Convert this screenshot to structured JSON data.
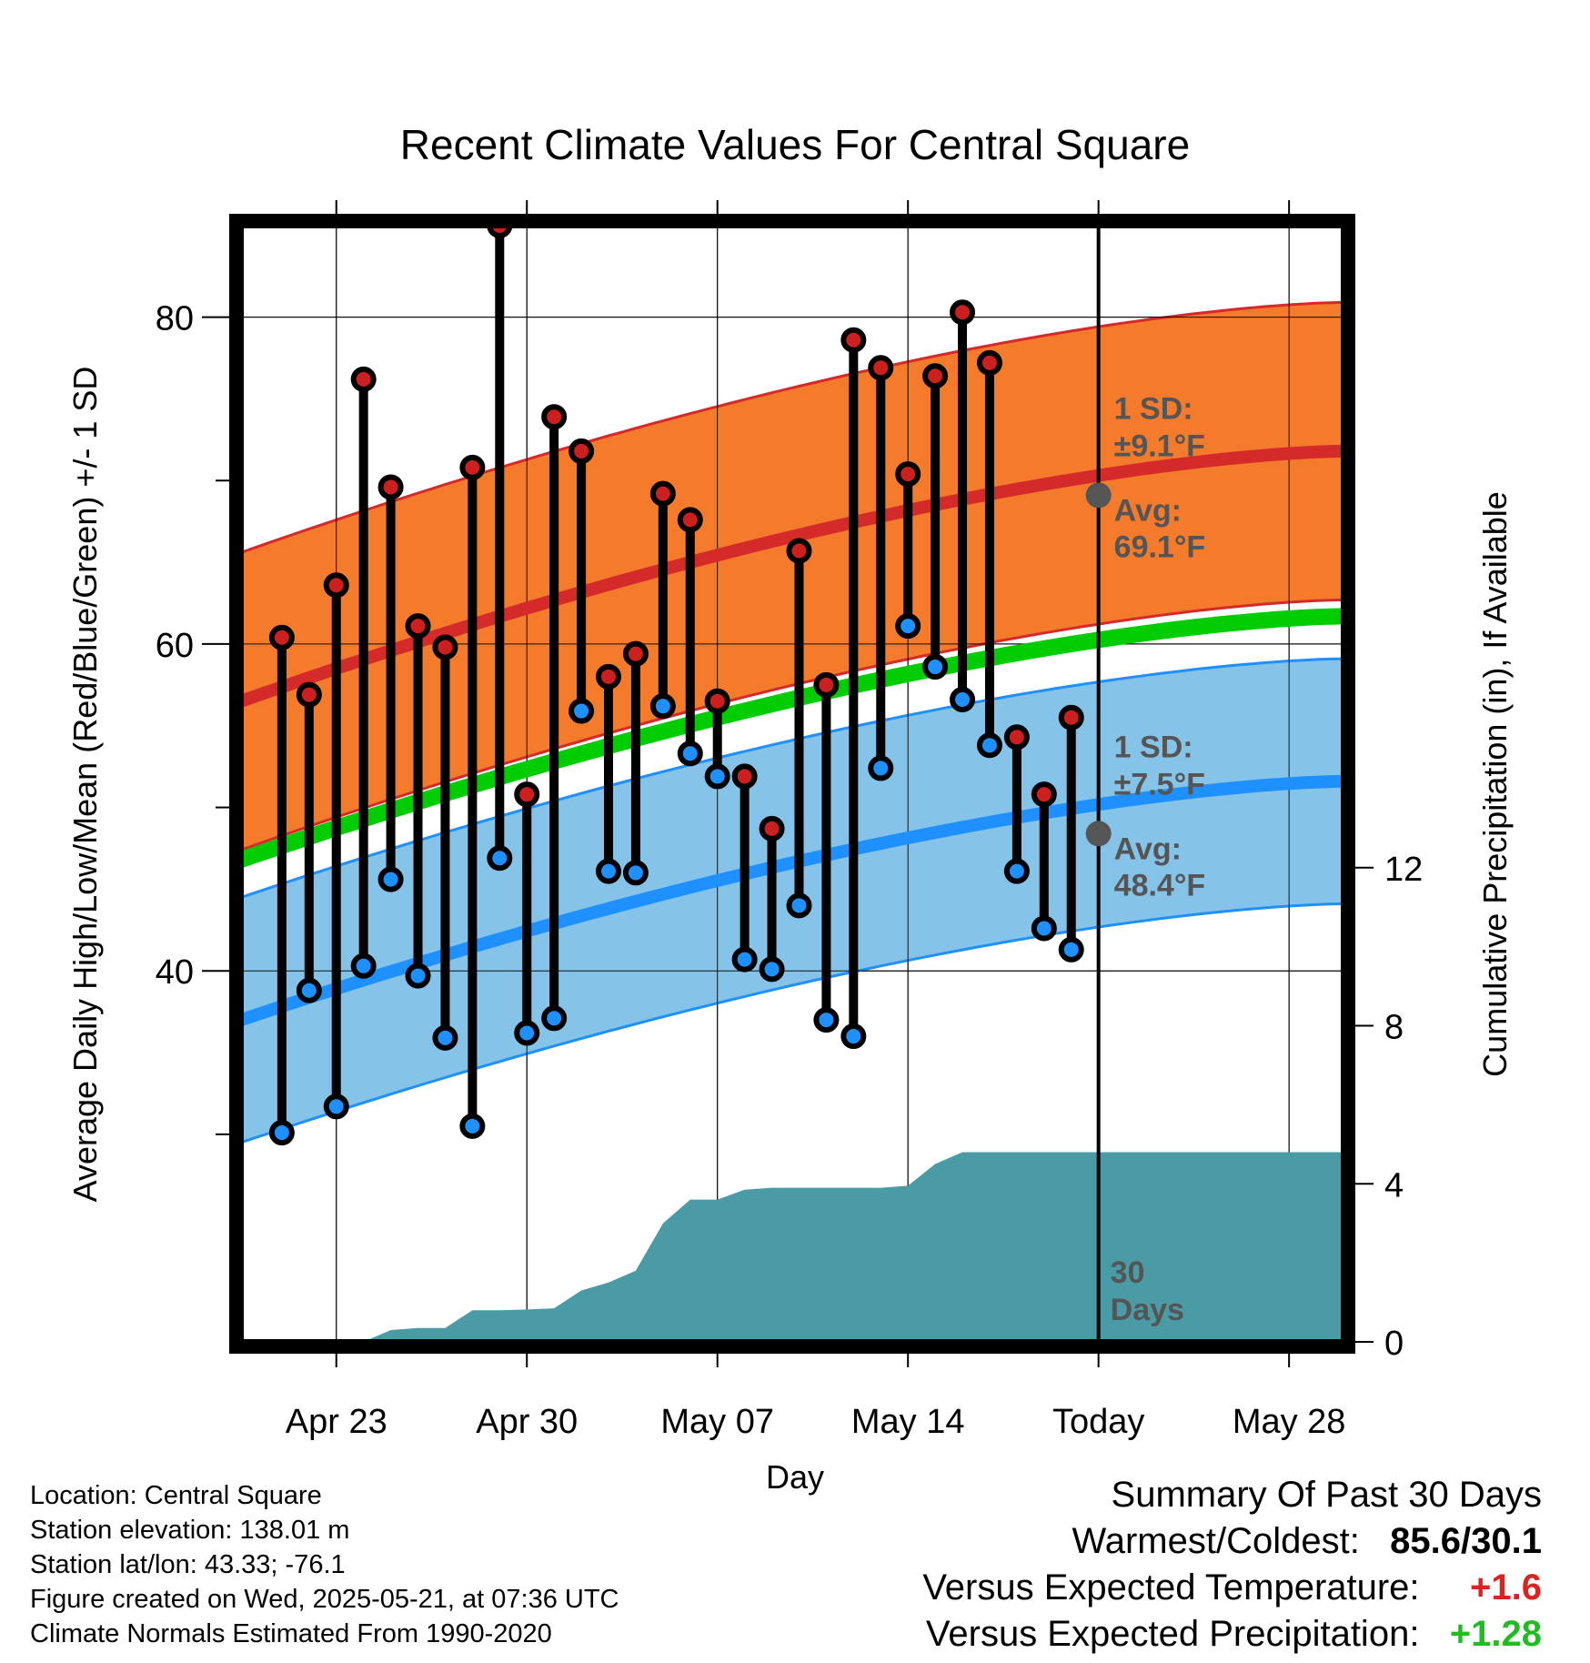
{
  "chart_data": {
    "type": "line",
    "title": "Recent Climate Values For Central Square",
    "xlabel": "Day",
    "ylabel_left": "Average Daily High/Low/Mean (Red/Blue/Green) +/- 1 SD",
    "ylabel_right": "Cumulative Precipitation (in), If Available",
    "x_tick_labels": [
      "Apr 23",
      "Apr 30",
      "May 07",
      "May 14",
      "Today",
      "May 28"
    ],
    "x_tick_days": [
      3,
      10,
      17,
      24,
      31,
      38
    ],
    "x_range_days": [
      -0.5,
      40
    ],
    "y_left_ticks": [
      40,
      60,
      80
    ],
    "y_left_range": [
      17.3,
      85.6
    ],
    "y_right_ticks": [
      0,
      4,
      8,
      12
    ],
    "y_right_range": [
      0,
      28.25
    ],
    "grid": true,
    "today_day": 31,
    "daily_highs": [
      60.4,
      56.9,
      63.6,
      76.2,
      69.6,
      61.1,
      59.8,
      70.8,
      85.6,
      50.8,
      73.9,
      71.8,
      58.0,
      59.4,
      69.2,
      67.6,
      56.5,
      51.9,
      48.7,
      65.7,
      57.5,
      78.6,
      76.9,
      70.4,
      76.4,
      80.3,
      77.2,
      54.3,
      50.8,
      55.5
    ],
    "daily_lows": [
      30.1,
      38.8,
      31.7,
      40.3,
      45.6,
      39.7,
      35.9,
      30.5,
      46.9,
      36.2,
      37.1,
      55.9,
      46.1,
      46.0,
      56.2,
      53.3,
      51.9,
      40.7,
      40.1,
      44.0,
      37.0,
      36.0,
      52.4,
      61.1,
      58.6,
      56.6,
      53.8,
      46.1,
      42.6,
      41.3
    ],
    "normal_high": {
      "name": "Avg",
      "value_today": 69.1,
      "sd": 9.1,
      "start": 56.5,
      "end": 71.8
    },
    "normal_low": {
      "name": "Avg",
      "value_today": 48.4,
      "sd": 7.5,
      "start": 37.0,
      "end": 51.6
    },
    "normal_mean": {
      "start": 46.8,
      "end": 61.7
    },
    "cumulative_precip_days": [
      0,
      3,
      4,
      5,
      6,
      7,
      8,
      9,
      10,
      11,
      12,
      13,
      14,
      15,
      16,
      17,
      18,
      19,
      20,
      21,
      22,
      23,
      24,
      25,
      26,
      27,
      28,
      29,
      30,
      31,
      40
    ],
    "cumulative_precip": [
      0,
      0,
      0,
      0.3,
      0.35,
      0.35,
      0.8,
      0.8,
      0.82,
      0.85,
      1.3,
      1.5,
      1.8,
      3.0,
      3.6,
      3.6,
      3.85,
      3.9,
      3.9,
      3.9,
      3.9,
      3.9,
      3.95,
      4.5,
      4.8,
      4.8,
      4.8,
      4.8,
      4.8,
      4.8,
      4.8
    ],
    "annotations": {
      "high_sd": "1 SD:",
      "high_sd_value": "±9.1°F",
      "high_avg": "Avg:",
      "high_avg_value": "69.1°F",
      "low_sd": "1 SD:",
      "low_sd_value": "±7.5°F",
      "low_avg": "Avg:",
      "low_avg_value": "48.4°F",
      "period_number": "30",
      "period_unit": "Days"
    },
    "colors": {
      "high_band": "#f47a2c",
      "high_line": "#d42a2a",
      "low_band": "#85c3e8",
      "low_line": "#1e90ff",
      "mean_line": "#00cc00",
      "precip": "#4a9ba5",
      "high_dot": "#cc1f1f",
      "low_dot": "#1e90ff",
      "today_dot": "#555555"
    }
  },
  "info": {
    "location": "Location: Central Square",
    "elevation": "Station elevation: 138.01 m",
    "latlon": "Station lat/lon: 43.33; -76.1",
    "created": "Figure created on Wed, 2025-05-21, at 07:36 UTC",
    "normals": "Climate Normals Estimated From 1990-2020"
  },
  "summary": {
    "heading": "Summary Of Past 30 Days",
    "warmest_label": "Warmest/Coldest:",
    "warmest_value": "85.6/30.1",
    "temp_label": "Versus Expected Temperature:",
    "temp_value": "+1.6",
    "temp_color": "#dd2222",
    "precip_label": "Versus Expected Precipitation:",
    "precip_value": "+1.28",
    "precip_color": "#22bb22"
  }
}
